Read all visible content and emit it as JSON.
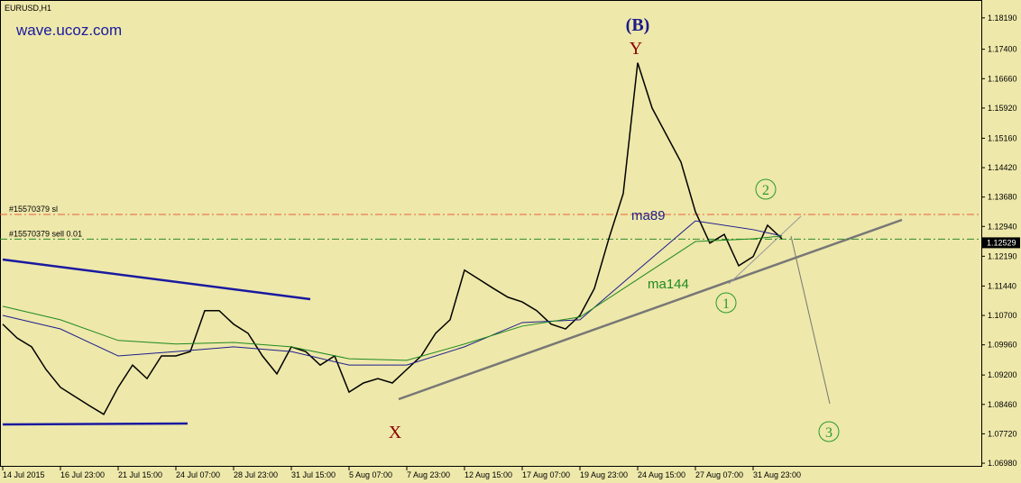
{
  "chart_data": {
    "type": "line",
    "symbol": "EURUSD,H1",
    "watermark": "wave.ucoz.com",
    "categories": [
      "14 Jul 2015",
      null,
      null,
      null,
      "16 Jul 23:00",
      null,
      null,
      null,
      "21 Jul 15:00",
      null,
      null,
      null,
      "24 Jul 07:00",
      null,
      null,
      null,
      "28 Jul 23:00",
      null,
      null,
      null,
      "31 Jul 15:00",
      null,
      null,
      null,
      "5 Aug 07:00",
      null,
      null,
      null,
      "7 Aug 23:00",
      null,
      null,
      null,
      "12 Aug 15:00",
      null,
      null,
      null,
      "17 Aug 07:00",
      null,
      null,
      null,
      "19 Aug 23:00",
      null,
      null,
      null,
      "24 Aug 15:00",
      null,
      null,
      null,
      "27 Aug 07:00",
      null,
      null,
      null,
      "31 Aug 23:00",
      null,
      null
    ],
    "series": [
      {
        "color": "#000000",
        "values": [
          1.1048,
          1.1013,
          1.0991,
          1.0934,
          1.0889,
          1.0866,
          1.0843,
          1.0821,
          1.0889,
          1.0945,
          1.0911,
          1.0968,
          1.0968,
          1.0979,
          1.1082,
          1.1082,
          1.1048,
          1.1025,
          1.0968,
          1.0923,
          1.0991,
          1.0979,
          1.0945,
          1.0968,
          1.0877,
          1.09,
          1.0911,
          1.09,
          1.0934,
          1.0968,
          1.1025,
          1.1059,
          1.1184,
          1.1161,
          1.1138,
          1.1116,
          1.1104,
          1.1082,
          1.1048,
          1.1036,
          1.107,
          1.1138,
          1.1263,
          1.1377,
          1.1706,
          1.1592,
          1.1524,
          1.1456,
          1.1331,
          1.1252,
          1.1274,
          1.1195,
          1.1218,
          1.1297,
          1.1263
        ]
      },
      {
        "name": "ma89",
        "color": "#1e1e8c",
        "x": [
          0,
          4,
          8,
          12,
          16,
          20,
          24,
          28,
          32,
          36,
          40,
          44,
          48,
          52,
          54
        ],
        "values": [
          1.107,
          1.1036,
          1.0968,
          1.0979,
          1.0991,
          1.0979,
          1.0945,
          1.0945,
          1.0991,
          1.1052,
          1.1059,
          1.1184,
          1.1308,
          1.1286,
          1.127
        ]
      },
      {
        "name": "ma144",
        "color": "#1f8a1f",
        "x": [
          0,
          4,
          8,
          12,
          16,
          20,
          24,
          28,
          32,
          36,
          40,
          44,
          48,
          52,
          54
        ],
        "values": [
          1.1093,
          1.1059,
          1.1007,
          1.0998,
          1.1002,
          1.0991,
          1.0961,
          1.0957,
          1.0998,
          1.1043,
          1.1066,
          1.1161,
          1.1256,
          1.1263,
          1.127
        ]
      }
    ],
    "ylim": [
      1.0689,
      1.1864
    ],
    "yticks": [
      {
        "value": 1.1819,
        "label": "1.18190"
      },
      {
        "value": 1.174,
        "label": "1.17400"
      },
      {
        "value": 1.1666,
        "label": "1.16660"
      },
      {
        "value": 1.1592,
        "label": "1.15920"
      },
      {
        "value": 1.1516,
        "label": "1.15160"
      },
      {
        "value": 1.1442,
        "label": "1.14420"
      },
      {
        "value": 1.1368,
        "label": "1.13680"
      },
      {
        "value": 1.1294,
        "label": "1.12940"
      },
      {
        "value": 1.1219,
        "label": "1.12190"
      },
      {
        "value": 1.1144,
        "label": "1.11440"
      },
      {
        "value": 1.107,
        "label": "1.10700"
      },
      {
        "value": 1.0996,
        "label": "1.09960"
      },
      {
        "value": 1.092,
        "label": "1.09200"
      },
      {
        "value": 1.0846,
        "label": "1.08460"
      },
      {
        "value": 1.0772,
        "label": "1.07720"
      },
      {
        "value": 1.0698,
        "label": "1.06980"
      }
    ],
    "current_price": {
      "value": 1.12529,
      "label": "1.12529"
    },
    "order_lines": [
      {
        "label": "#15570379 sl",
        "value": 1.1324,
        "color": "#e8603c"
      },
      {
        "label": "#15570379 sell 0.01",
        "value": 1.1262,
        "color": "#2e8b2e"
      }
    ],
    "annotations": {
      "wave_b": "(B)",
      "y": "Y",
      "x": "X",
      "w1": "1",
      "w2": "2",
      "w3": "3"
    }
  }
}
